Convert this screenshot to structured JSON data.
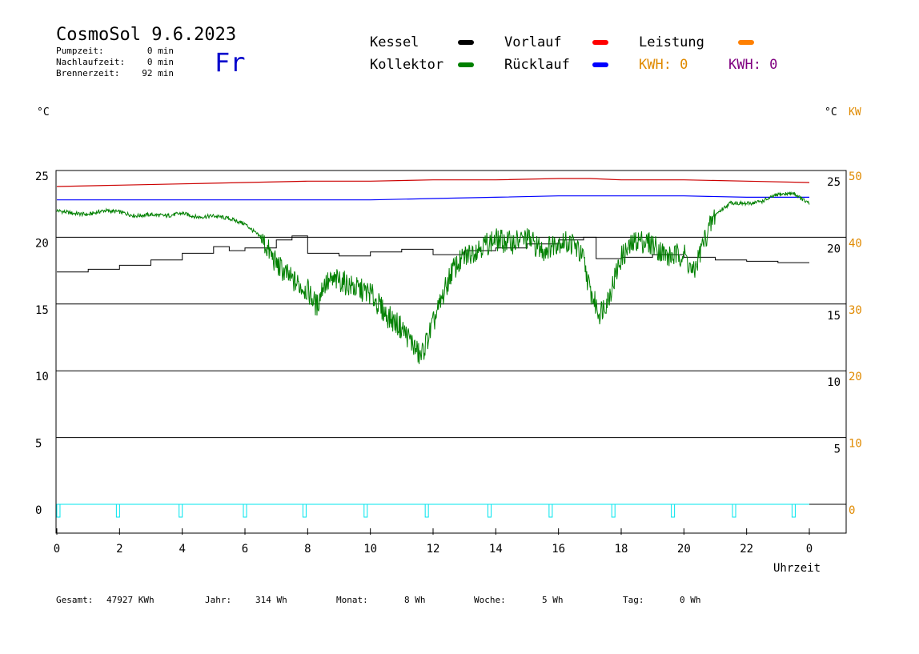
{
  "header": {
    "title": "CosmoSol 9.6.2023",
    "day": "Fr",
    "stats": [
      {
        "label": "Pumpzeit:",
        "value": "0 min"
      },
      {
        "label": "Nachlaufzeit:",
        "value": "0 min"
      },
      {
        "label": "Brennerzeit:",
        "value": "92 min"
      }
    ]
  },
  "legend": {
    "kessel": {
      "label": "Kessel",
      "color": "#000000"
    },
    "vorlauf": {
      "label": "Vorlauf",
      "color": "#ff0000"
    },
    "leistung": {
      "label": "Leistung",
      "color": "#ff8000"
    },
    "kollektor": {
      "label": "Kollektor",
      "color": "#008000"
    },
    "ruecklauf": {
      "label": "Rücklauf",
      "color": "#0000ff"
    },
    "kwh1": {
      "label": "KWH: 0",
      "color": "#e08a00"
    },
    "kwh2": {
      "label": "KWH: 0",
      "color": "#800080"
    }
  },
  "axes": {
    "left_unit": "°C",
    "right_unit": "°C",
    "right_unit2": "KW",
    "xlabel": "Uhrzeit"
  },
  "footer": [
    {
      "label": "Gesamt:",
      "value": "47927 KWh"
    },
    {
      "label": "Jahr:",
      "value": "314 Wh"
    },
    {
      "label": "Monat:",
      "value": "8 Wh"
    },
    {
      "label": "Woche:",
      "value": "5 Wh"
    },
    {
      "label": "Tag:",
      "value": "0 Wh"
    }
  ],
  "chart_data": {
    "type": "line",
    "xlim": [
      0,
      24
    ],
    "ylim": [
      -2,
      25
    ],
    "x_ticks": [
      "0",
      "2",
      "4",
      "6",
      "8",
      "10",
      "12",
      "14",
      "16",
      "18",
      "20",
      "22",
      "0"
    ],
    "y_ticks_left": [
      "25",
      "20",
      "15",
      "10",
      "5",
      "0"
    ],
    "y_ticks_right": [
      "25",
      "20",
      "15",
      "10",
      "5"
    ],
    "y_ticks_kw": [
      "50",
      "40",
      "30",
      "20",
      "10",
      "0"
    ],
    "grid": "horizontal",
    "series": [
      {
        "name": "Vorlauf",
        "color": "#cc0000",
        "x": [
          0,
          2,
          4,
          6,
          8,
          10,
          12,
          14,
          16,
          17,
          18,
          20,
          22,
          24
        ],
        "y": [
          23.8,
          23.9,
          24.0,
          24.1,
          24.2,
          24.2,
          24.3,
          24.3,
          24.4,
          24.4,
          24.3,
          24.3,
          24.2,
          24.1
        ]
      },
      {
        "name": "Rücklauf",
        "color": "#0000ff",
        "x": [
          0,
          2,
          4,
          6,
          8,
          10,
          12,
          14,
          16,
          17,
          18,
          20,
          22,
          24
        ],
        "y": [
          22.8,
          22.8,
          22.8,
          22.8,
          22.8,
          22.8,
          22.9,
          23.0,
          23.1,
          23.1,
          23.1,
          23.1,
          23.0,
          23.0
        ]
      },
      {
        "name": "Kessel",
        "color": "#000000",
        "x": [
          0,
          1,
          2,
          3,
          4,
          5,
          5.5,
          6,
          7,
          7.5,
          8,
          9,
          10,
          11,
          12,
          13,
          14,
          15,
          16,
          16.8,
          17.2,
          18,
          19,
          20,
          21,
          22,
          23,
          24
        ],
        "y": [
          17.4,
          17.6,
          17.9,
          18.3,
          18.8,
          19.3,
          19.0,
          19.2,
          19.8,
          20.1,
          18.8,
          18.6,
          18.9,
          19.1,
          18.7,
          19.0,
          19.2,
          19.5,
          19.8,
          20.0,
          18.4,
          18.5,
          18.7,
          18.5,
          18.3,
          18.2,
          18.1,
          18.1
        ]
      },
      {
        "name": "Kollektor",
        "color": "#008000",
        "x": [
          0,
          0.5,
          1,
          1.5,
          2,
          2.5,
          3,
          3.5,
          4,
          4.5,
          5,
          5.5,
          6,
          6.5,
          7,
          7.5,
          8,
          8.3,
          8.5,
          9,
          9.5,
          10,
          10.5,
          11,
          11.3,
          11.6,
          12,
          12.3,
          12.6,
          13,
          13.5,
          14,
          14.5,
          15,
          15.5,
          16,
          16.5,
          16.8,
          17,
          17.3,
          17.6,
          18,
          18.5,
          19,
          19.5,
          20,
          20.3,
          20.6,
          21,
          21.5,
          22,
          22.5,
          23,
          23.5,
          23.8,
          24
        ],
        "y": [
          22.0,
          21.8,
          21.7,
          22.0,
          21.9,
          21.6,
          21.7,
          21.6,
          21.8,
          21.5,
          21.6,
          21.4,
          21.0,
          20.0,
          18.0,
          16.8,
          16.0,
          14.8,
          16.5,
          16.8,
          16.2,
          15.8,
          14.2,
          13.2,
          12.2,
          11.0,
          13.5,
          15.5,
          17.5,
          18.5,
          19.3,
          19.8,
          19.6,
          19.9,
          19.0,
          19.7,
          19.5,
          18.3,
          16.0,
          14.3,
          15.5,
          18.5,
          19.8,
          19.5,
          18.5,
          18.8,
          17.2,
          19.5,
          21.7,
          22.6,
          22.5,
          22.7,
          23.2,
          23.3,
          22.8,
          22.5
        ]
      },
      {
        "name": "Leistung",
        "color": "#00e5ee",
        "x": [
          0,
          24
        ],
        "y": [
          0,
          0
        ]
      }
    ],
    "pump_markers": [
      0.05,
      1.95,
      3.95,
      6.0,
      7.9,
      9.85,
      11.8,
      13.8,
      15.75,
      17.75,
      19.65,
      21.6,
      23.5
    ]
  }
}
